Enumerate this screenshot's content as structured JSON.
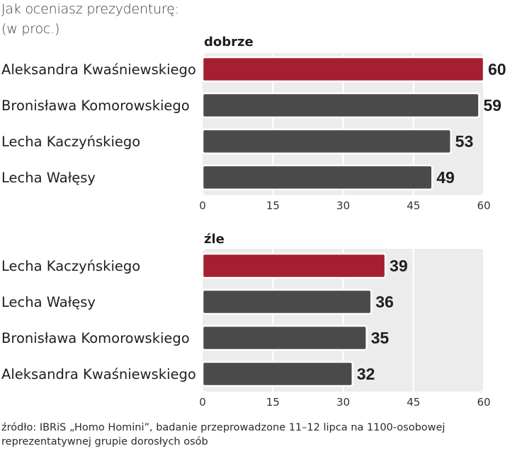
{
  "header": {
    "title_line1": "Jak oceniasz prezydenturę:",
    "title_line2": "(w proc.)"
  },
  "source": {
    "line1": "źródło: IBRiS „Homo Homini”, badanie przeprowadzone 11–12 lipca na 1100-osobowej",
    "line2": "reprezentatywnej grupie dorosłych osób"
  },
  "colors": {
    "highlight": "#a51f31",
    "bar": "#4a4a4a",
    "panel_bg": "#ececec",
    "grid": "#ffffff"
  },
  "chart_data": [
    {
      "type": "bar",
      "orientation": "horizontal",
      "title": "dobrze",
      "categories": [
        "Aleksandra Kwaśniewskiego",
        "Bronisława Komorowskiego",
        "Lecha Kaczyńskiego",
        "Lecha Wałęsy"
      ],
      "values": [
        60,
        59,
        53,
        49
      ],
      "value_labels": [
        "60",
        "59",
        "53",
        "49"
      ],
      "highlight_index": 0,
      "xlim": [
        0,
        60
      ],
      "xticks": [
        0,
        15,
        30,
        45,
        60
      ],
      "xtick_labels": [
        "0",
        "15",
        "30",
        "45",
        "60"
      ],
      "xlabel": "",
      "ylabel": ""
    },
    {
      "type": "bar",
      "orientation": "horizontal",
      "title": "źle",
      "categories": [
        "Lecha Kaczyńskiego",
        "Lecha Wałęsy",
        "Bronisława Komorowskiego",
        "Aleksandra Kwaśniewskiego"
      ],
      "values": [
        39,
        36,
        35,
        32
      ],
      "value_labels": [
        "39",
        "36",
        "35",
        "32"
      ],
      "highlight_index": 0,
      "xlim": [
        0,
        60
      ],
      "xticks": [
        0,
        15,
        30,
        45,
        60
      ],
      "xtick_labels": [
        "0",
        "15",
        "30",
        "45",
        "60"
      ],
      "xlabel": "",
      "ylabel": ""
    }
  ]
}
